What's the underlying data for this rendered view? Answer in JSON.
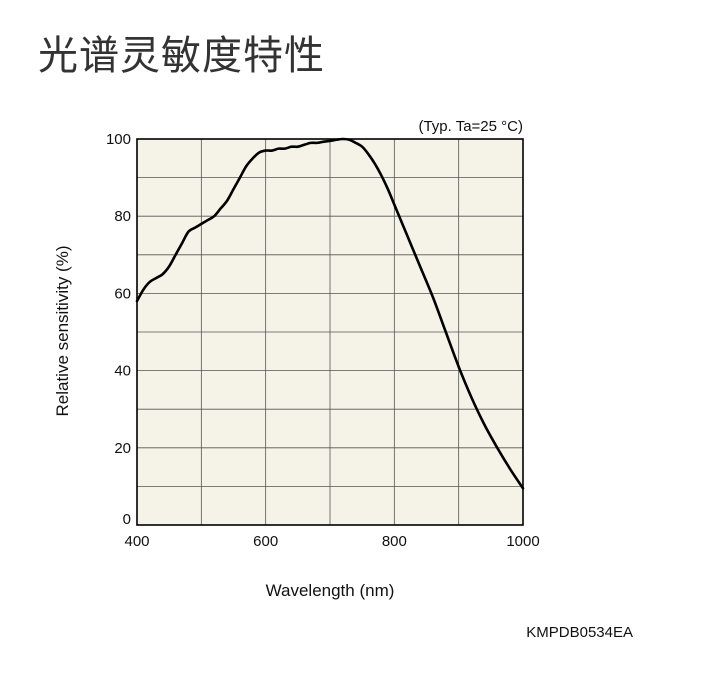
{
  "page": {
    "title": "光谱灵敏度特性",
    "catalog_code": "KMPDB0534EA"
  },
  "chart_data": {
    "type": "line",
    "title": "",
    "condition": "(Typ. Ta=25 °C)",
    "xlabel": "Wavelength (nm)",
    "ylabel": "Relative sensitivity (%)",
    "xlim": [
      400,
      1000
    ],
    "ylim": [
      0,
      100
    ],
    "xticks": [
      400,
      600,
      800,
      1000
    ],
    "yticks": [
      0,
      20,
      40,
      60,
      80,
      100
    ],
    "x_minor_grid_step": 100,
    "y_minor_grid_step": 10,
    "grid": true,
    "plot_background": "#f5f3e8",
    "line_color": "#000000",
    "series": [
      {
        "x": [
          400,
          410,
          420,
          430,
          440,
          450,
          460,
          470,
          480,
          490,
          500,
          510,
          520,
          530,
          540,
          550,
          560,
          570,
          580,
          590,
          600,
          610,
          620,
          630,
          640,
          650,
          660,
          670,
          680,
          690,
          700,
          710,
          720,
          730,
          740,
          750,
          760,
          770,
          780,
          790,
          800,
          820,
          840,
          860,
          880,
          900,
          920,
          940,
          960,
          980,
          1000
        ],
        "y": [
          58,
          61,
          63,
          64,
          65,
          67,
          70,
          73,
          76,
          77,
          78,
          79,
          80,
          82,
          84,
          87,
          90,
          93,
          95,
          96.5,
          97,
          97,
          97.5,
          97.5,
          98,
          98,
          98.5,
          99,
          99,
          99.3,
          99.5,
          99.8,
          100,
          99.8,
          99,
          98,
          96,
          93.5,
          90.5,
          87,
          83,
          75,
          67,
          59,
          50,
          41,
          33,
          26,
          20,
          14.5,
          9.5
        ]
      }
    ]
  }
}
